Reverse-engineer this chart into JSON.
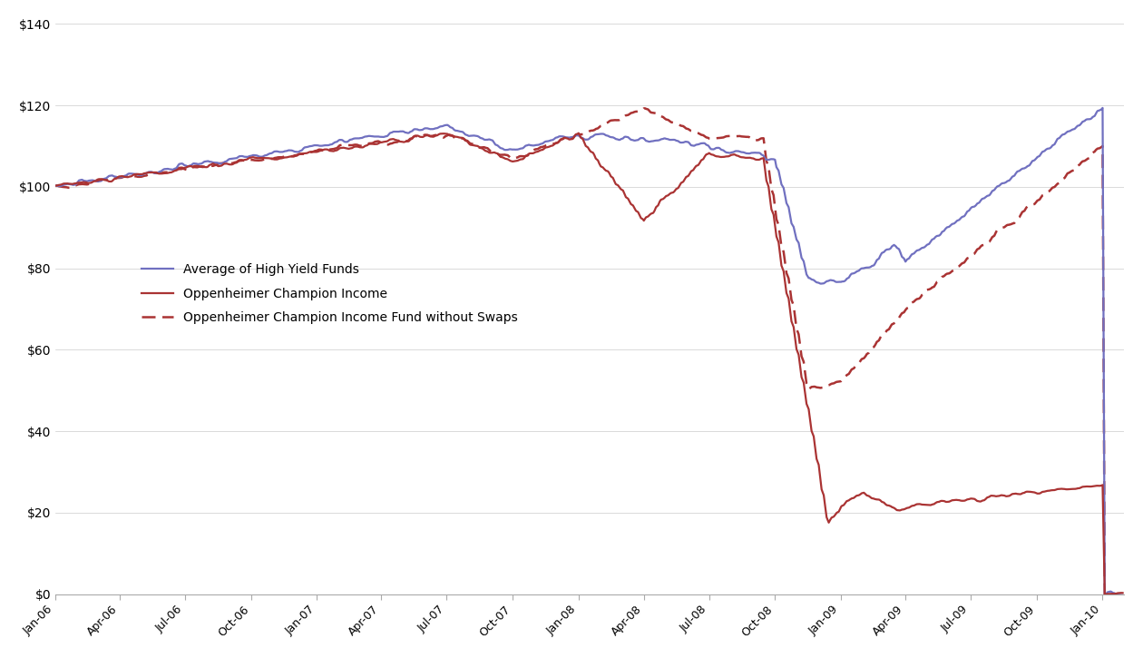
{
  "background_color": "#ffffff",
  "line_color_avg": "#7070c0",
  "line_color_opp": "#aa3333",
  "line_color_swap": "#aa3333",
  "ylim": [
    0,
    140
  ],
  "yticks": [
    0,
    20,
    40,
    60,
    80,
    100,
    120,
    140
  ],
  "legend_labels": [
    "Average of High Yield Funds",
    "Oppenheimer Champion Income",
    "Oppenheimer Champion Income Fund without Swaps"
  ],
  "x_tick_labels": [
    "Jan-06",
    "Apr-06",
    "Jul-06",
    "Oct-06",
    "Jan-07",
    "Apr-07",
    "Jul-07",
    "Oct-07",
    "Jan-08",
    "Apr-08",
    "Jul-08",
    "Oct-08",
    "Jan-09",
    "Apr-09",
    "Jul-09",
    "Oct-09",
    "Jan-10"
  ]
}
